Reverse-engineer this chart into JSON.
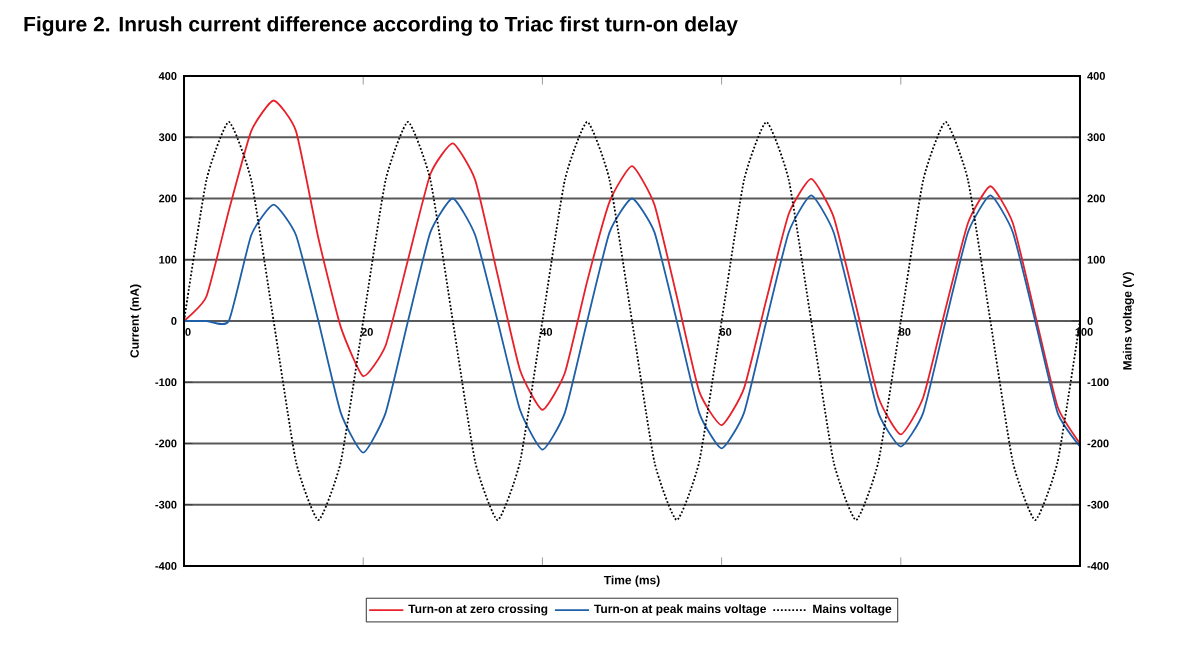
{
  "chart_data": {
    "type": "line",
    "title": "Figure 2. Inrush current difference according to Triac first turn-on delay",
    "xlabel": "Time (ms)",
    "ylabel": "Current (mA)",
    "y2label": "Mains voltage (V)",
    "x": [
      0,
      2.5,
      5,
      7.5,
      10,
      12.5,
      15,
      17.5,
      20,
      22.5,
      25,
      27.5,
      30,
      32.5,
      35,
      37.5,
      40,
      42.5,
      45,
      47.5,
      50,
      52.5,
      55,
      57.5,
      60,
      62.5,
      65,
      67.5,
      70,
      72.5,
      75,
      77.5,
      80,
      82.5,
      85,
      87.5,
      90,
      92.5,
      95,
      97.5,
      100
    ],
    "xlim": [
      0,
      100
    ],
    "xticks": [
      0,
      20,
      40,
      60,
      80,
      100
    ],
    "ylim": [
      -400,
      400
    ],
    "yticks": [
      -400,
      -300,
      -200,
      -100,
      0,
      100,
      200,
      300,
      400
    ],
    "y2lim": [
      -400,
      400
    ],
    "y2ticks": [
      -400,
      -300,
      -200,
      -100,
      0,
      100,
      200,
      300,
      400
    ],
    "grid": "y",
    "legend": "bottom",
    "series": [
      {
        "name": "Turn-on at zero crossing",
        "color": "#e8202a",
        "line_style": "solid",
        "values": [
          0,
          40,
          180,
          310,
          360,
          310,
          135,
          -10,
          -90,
          -40,
          100,
          240,
          290,
          230,
          75,
          -80,
          -145,
          -85,
          65,
          195,
          253,
          190,
          40,
          -115,
          -170,
          -110,
          35,
          175,
          232,
          170,
          25,
          -125,
          -185,
          -125,
          20,
          160,
          220,
          160,
          10,
          -140,
          -200
        ]
      },
      {
        "name": "Turn-on at peak mains voltage",
        "color": "#1f5fa8",
        "line_style": "solid",
        "values": [
          0,
          0,
          0,
          140,
          190,
          140,
          0,
          -150,
          -215,
          -150,
          0,
          145,
          200,
          140,
          0,
          -145,
          -210,
          -150,
          0,
          145,
          200,
          145,
          0,
          -150,
          -208,
          -150,
          0,
          145,
          205,
          145,
          0,
          -150,
          -205,
          -150,
          0,
          145,
          205,
          145,
          0,
          -150,
          -205
        ]
      },
      {
        "name": "Mains voltage",
        "color": "#000000",
        "line_style": "dotted",
        "axis": "y2",
        "values": [
          0,
          230,
          325,
          230,
          0,
          -230,
          -325,
          -230,
          0,
          230,
          325,
          230,
          0,
          -230,
          -325,
          -230,
          0,
          230,
          325,
          230,
          0,
          -230,
          -325,
          -230,
          0,
          230,
          325,
          230,
          0,
          -230,
          -325,
          -230,
          0,
          230,
          325,
          230,
          0,
          -230,
          -325,
          -230,
          0
        ]
      }
    ]
  }
}
